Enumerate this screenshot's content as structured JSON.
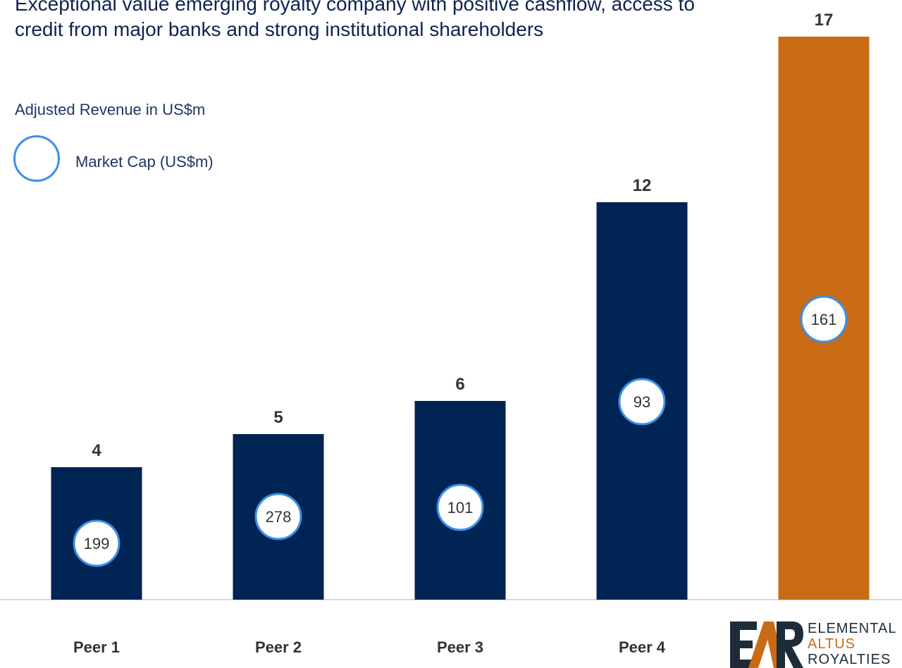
{
  "title": "Exceptional value emerging royalty company with positive cashflow, access to credit from major banks and strong institutional shareholders",
  "subtitle": "Adjusted Revenue in US$m",
  "legend": {
    "label": "Market Cap (US$m)"
  },
  "colors": {
    "peer": "#002454",
    "highlight": "#c96b15",
    "circle_border": "#3b8ee8",
    "title": "#0f2350"
  },
  "logo": {
    "line1": "ELEMENTAL",
    "line2": "ALTUS",
    "line3": "ROYALTIES"
  },
  "chart_data": {
    "type": "bar",
    "categories": [
      "Peer 1",
      "Peer 2",
      "Peer 3",
      "Peer 4",
      ""
    ],
    "values": [
      4,
      5,
      6,
      12,
      17
    ],
    "market_cap": [
      199,
      278,
      101,
      93,
      161
    ],
    "highlight_index": 4,
    "ylabel": "Adjusted Revenue in US$m",
    "ylim": [
      0,
      17
    ],
    "grid": false,
    "legend_position": "top-left"
  }
}
